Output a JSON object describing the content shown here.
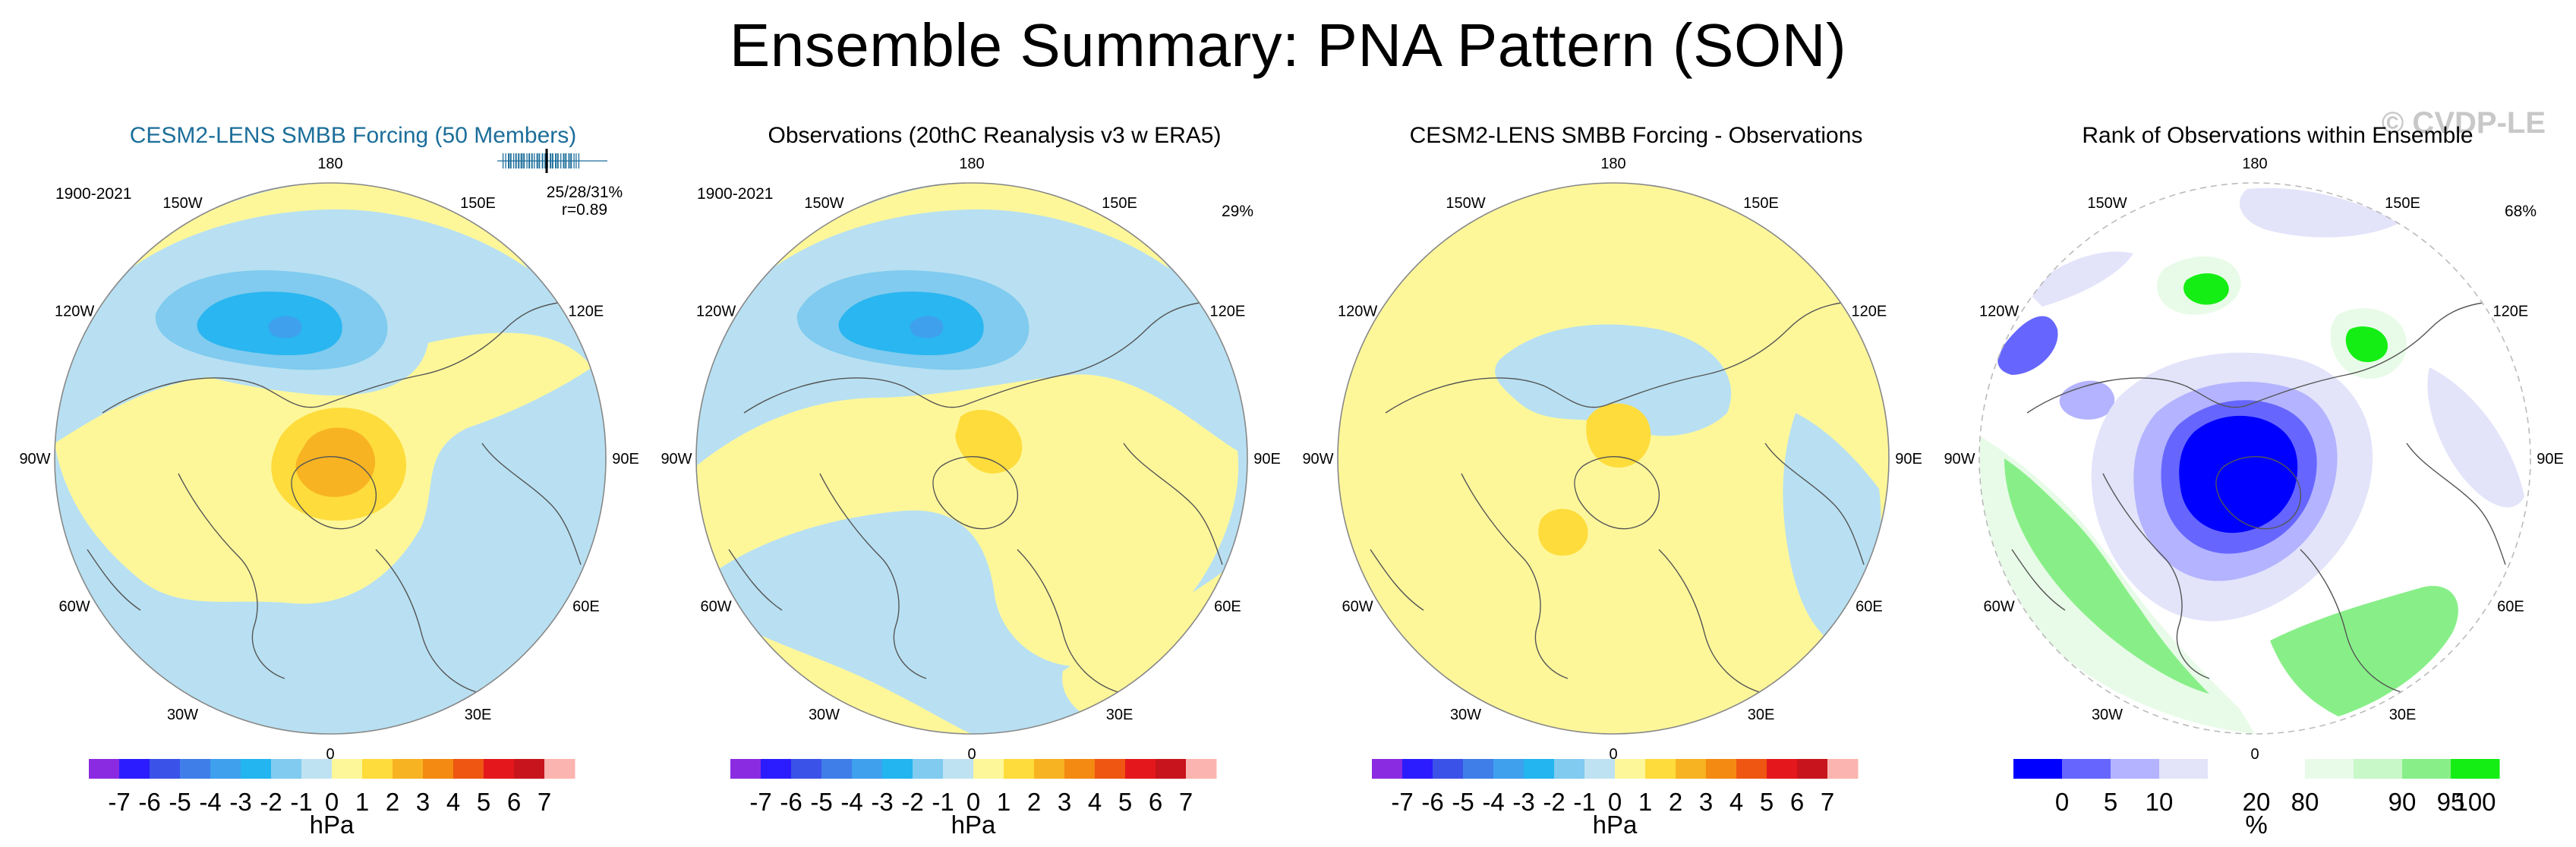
{
  "title": "Ensemble Summary: PNA Pattern (SON)",
  "watermark": "© CVDP-LE",
  "chart_data": [
    {
      "type": "heatmap",
      "projection": "polar-stereographic",
      "title": "CESM2-LENS SMBB Forcing (50 Members)",
      "period": "1900-2021",
      "stats": "25/28/31%",
      "correlation": "r=0.89",
      "member_distribution_range": [
        25,
        31
      ],
      "longitude_labels": [
        "180",
        "150E",
        "120E",
        "90E",
        "60E",
        "30E",
        "0",
        "30W",
        "60W",
        "90W",
        "120W",
        "150W"
      ],
      "colorbar": {
        "ticks": [
          "-7",
          "-6",
          "-5",
          "-4",
          "-3",
          "-2",
          "-1",
          "0",
          "1",
          "2",
          "3",
          "4",
          "5",
          "6",
          "7"
        ],
        "unit": "hPa",
        "colors": [
          "#8a2be2",
          "#2b1cff",
          "#3a52e8",
          "#3f7ee8",
          "#3fa0ee",
          "#22b5f0",
          "#80cbef",
          "#bfe2f2",
          "#fef79a",
          "#fedc3c",
          "#f8b322",
          "#f48a12",
          "#ee5612",
          "#e4181c",
          "#c8141c",
          "#fcb4b0"
        ]
      },
      "contours": {
        "low_center": "north Pacific",
        "low_min": -4,
        "high_center": "Arctic / Canada",
        "high_max": 3
      }
    },
    {
      "type": "heatmap",
      "projection": "polar-stereographic",
      "title": "Observations (20thC Reanalysis v3 w ERA5)",
      "period": "1900-2021",
      "stats": "29%",
      "longitude_labels": [
        "180",
        "150E",
        "120E",
        "90E",
        "60E",
        "30E",
        "0",
        "30W",
        "60W",
        "90W",
        "120W",
        "150W"
      ],
      "colorbar": {
        "ticks": [
          "-7",
          "-6",
          "-5",
          "-4",
          "-3",
          "-2",
          "-1",
          "0",
          "1",
          "2",
          "3",
          "4",
          "5",
          "6",
          "7"
        ],
        "unit": "hPa"
      },
      "contours": {
        "low_center": "north Pacific",
        "low_min": -4,
        "high_center": "Canada",
        "high_max": 2
      }
    },
    {
      "type": "heatmap",
      "projection": "polar-stereographic",
      "title": "CESM2-LENS SMBB Forcing - Observations",
      "longitude_labels": [
        "180",
        "150E",
        "120E",
        "90E",
        "60E",
        "30E",
        "0",
        "30W",
        "60W",
        "90W",
        "120W",
        "150W"
      ],
      "colorbar": {
        "ticks": [
          "-7",
          "-6",
          "-5",
          "-4",
          "-3",
          "-2",
          "-1",
          "0",
          "1",
          "2",
          "3",
          "4",
          "5",
          "6",
          "7"
        ],
        "unit": "hPa"
      },
      "contours": {
        "high_center": "Arctic",
        "high_max": 2
      }
    },
    {
      "type": "heatmap",
      "projection": "polar-stereographic",
      "title": "Rank of Observations within Ensemble",
      "stats": "68%",
      "longitude_labels": [
        "180",
        "150E",
        "120E",
        "90E",
        "60E",
        "30E",
        "0",
        "30W",
        "60W",
        "90W",
        "120W",
        "150W"
      ],
      "colorbar": {
        "ticks": [
          "0",
          "5",
          "10",
          "20",
          "80",
          "90",
          "95",
          "100"
        ],
        "unit": "%",
        "colors": [
          "#0000ff",
          "#6666ff",
          "#b3b3ff",
          "#e3e3fa",
          "#ffffff",
          "#ffffff",
          "#e8fbe8",
          "#c8f7c8",
          "#88ef88",
          "#14ee14"
        ]
      }
    }
  ]
}
